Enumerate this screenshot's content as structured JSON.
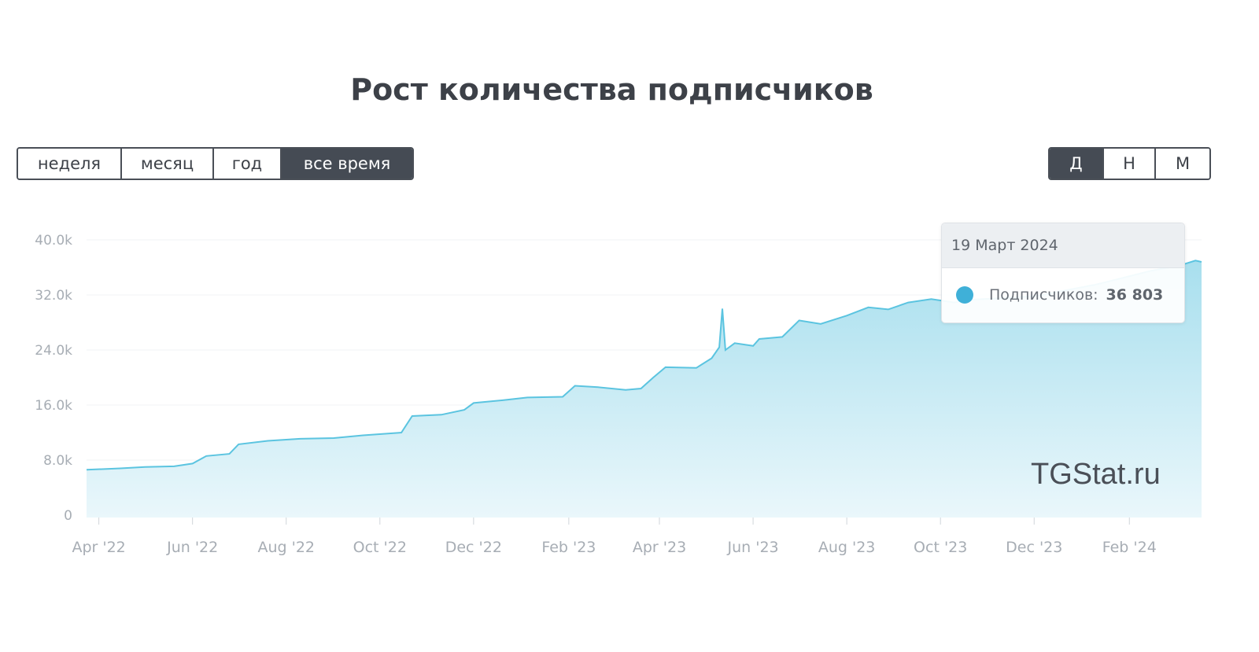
{
  "title": "Рост количества подписчиков",
  "range_buttons": [
    {
      "label": "неделя",
      "active": false
    },
    {
      "label": "месяц",
      "active": false
    },
    {
      "label": "год",
      "active": false
    },
    {
      "label": "все время",
      "active": true
    }
  ],
  "granularity_buttons": [
    {
      "label": "Д",
      "active": true
    },
    {
      "label": "Н",
      "active": false
    },
    {
      "label": "М",
      "active": false
    }
  ],
  "tooltip": {
    "date": "19 Март 2024",
    "series_label": "Подписчиков:",
    "value": "36 803"
  },
  "watermark": "TGStat.ru",
  "colors": {
    "line": "#5bc4e0",
    "fill_top": "#a8dfee",
    "fill_bottom": "#eaf7fb",
    "accent": "#3fb0d8",
    "active_button": "#454b54"
  },
  "chart_data": {
    "type": "area",
    "title": "Рост количества подписчиков",
    "xlabel": "",
    "ylabel": "",
    "ylim": [
      0,
      40000
    ],
    "yticks": [
      0,
      8000,
      16000,
      24000,
      32000,
      40000
    ],
    "ytick_labels": [
      "0",
      "8.0k",
      "16.0k",
      "24.0k",
      "32.0k",
      "40.0k"
    ],
    "xticks": [
      "2022-04-01",
      "2022-06-01",
      "2022-08-01",
      "2022-10-01",
      "2022-12-01",
      "2023-02-01",
      "2023-04-01",
      "2023-06-01",
      "2023-08-01",
      "2023-10-01",
      "2023-12-01",
      "2024-02-01"
    ],
    "xtick_labels": [
      "Apr '22",
      "Jun '22",
      "Aug '22",
      "Oct '22",
      "Dec '22",
      "Feb '23",
      "Apr '23",
      "Jun '23",
      "Aug '23",
      "Oct '23",
      "Dec '23",
      "Feb '24"
    ],
    "grid": true,
    "points": [
      [
        "2022-03-24",
        6600
      ],
      [
        "2022-04-15",
        6800
      ],
      [
        "2022-05-01",
        7000
      ],
      [
        "2022-05-20",
        7100
      ],
      [
        "2022-06-01",
        7500
      ],
      [
        "2022-06-10",
        8600
      ],
      [
        "2022-06-25",
        8900
      ],
      [
        "2022-07-01",
        10300
      ],
      [
        "2022-07-20",
        10800
      ],
      [
        "2022-08-10",
        11100
      ],
      [
        "2022-09-01",
        11200
      ],
      [
        "2022-09-20",
        11600
      ],
      [
        "2022-10-15",
        12000
      ],
      [
        "2022-10-22",
        14400
      ],
      [
        "2022-11-10",
        14600
      ],
      [
        "2022-11-25",
        15300
      ],
      [
        "2022-12-01",
        16300
      ],
      [
        "2022-12-20",
        16700
      ],
      [
        "2023-01-05",
        17100
      ],
      [
        "2023-01-28",
        17200
      ],
      [
        "2023-02-05",
        18800
      ],
      [
        "2023-02-20",
        18600
      ],
      [
        "2023-03-10",
        18200
      ],
      [
        "2023-03-20",
        18400
      ],
      [
        "2023-03-28",
        20000
      ],
      [
        "2023-04-05",
        21500
      ],
      [
        "2023-04-25",
        21400
      ],
      [
        "2023-05-05",
        22800
      ],
      [
        "2023-05-10",
        24400
      ],
      [
        "2023-05-12",
        30000
      ],
      [
        "2023-05-14",
        24000
      ],
      [
        "2023-05-20",
        25000
      ],
      [
        "2023-06-01",
        24600
      ],
      [
        "2023-06-05",
        25600
      ],
      [
        "2023-06-20",
        25900
      ],
      [
        "2023-07-01",
        28300
      ],
      [
        "2023-07-15",
        27800
      ],
      [
        "2023-08-01",
        29000
      ],
      [
        "2023-08-15",
        30200
      ],
      [
        "2023-08-28",
        29900
      ],
      [
        "2023-09-10",
        30900
      ],
      [
        "2023-09-25",
        31400
      ],
      [
        "2023-10-10",
        30900
      ],
      [
        "2023-10-20",
        31300
      ],
      [
        "2023-12-01",
        31800
      ],
      [
        "2024-01-10",
        33500
      ],
      [
        "2024-02-15",
        35500
      ],
      [
        "2024-03-05",
        36300
      ],
      [
        "2024-03-15",
        37000
      ],
      [
        "2024-03-19",
        36803
      ]
    ]
  }
}
